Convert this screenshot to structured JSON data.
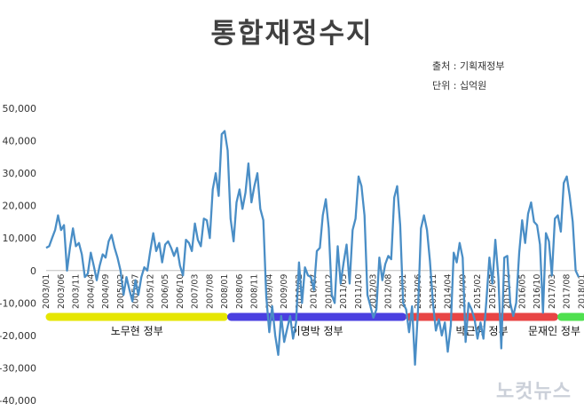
{
  "chart_data": {
    "type": "line",
    "title": "통합재정수지",
    "source_note": "출처 : 기획재정부",
    "unit_note": "단위 : 십억원",
    "ylim": [
      -40000,
      50000
    ],
    "y_ticks": [
      50000,
      40000,
      30000,
      20000,
      10000,
      0,
      -10000,
      -20000,
      -30000,
      -40000
    ],
    "y_tick_labels": [
      "50,000",
      "40,000",
      "30,000",
      "20,000",
      "10,000",
      "0",
      "-10,000",
      "-20,000",
      "-30,000",
      "-40,000"
    ],
    "x_tick_labels": [
      "2003/01",
      "2003/06",
      "2003/11",
      "2004/04",
      "2004/09",
      "2005/02",
      "2005/07",
      "2005/12",
      "2006/05",
      "2006/10",
      "2007/03",
      "2007/08",
      "2008/01",
      "2008/06",
      "2008/11",
      "2009/04",
      "2009/09",
      "2010/02",
      "2010/07",
      "2010/12",
      "2011/05",
      "2011/10",
      "2012/03",
      "2012/08",
      "2013/01",
      "2013/06",
      "2013/11",
      "2014/04",
      "2014/09",
      "2015/02",
      "2015/07",
      "2015/12",
      "2016/05",
      "2016/10",
      "2017/03",
      "2017/08",
      "2018/01"
    ],
    "series": [
      {
        "name": "통합재정수지",
        "color": "#4a8ec6",
        "values": [
          7000,
          7500,
          10000,
          12500,
          17000,
          12500,
          14000,
          0,
          7000,
          13000,
          7500,
          8500,
          5000,
          -2000,
          -1000,
          5500,
          1500,
          -3000,
          1500,
          5000,
          4000,
          9000,
          11000,
          7000,
          4000,
          0,
          -7500,
          -2000,
          -6000,
          -9500,
          -3000,
          -7500,
          -2000,
          1000,
          0,
          6000,
          11500,
          6000,
          8500,
          2500,
          8000,
          9000,
          7000,
          4500,
          7000,
          1500,
          -1500,
          9500,
          8500,
          6000,
          14500,
          9500,
          7500,
          16000,
          15500,
          10000,
          25000,
          30000,
          23000,
          42000,
          43000,
          37000,
          16000,
          9000,
          21000,
          25000,
          19000,
          24000,
          33000,
          21000,
          26000,
          30000,
          19000,
          15500,
          -8000,
          -19000,
          -11000,
          -20000,
          -26000,
          -14000,
          -22000,
          -18000,
          -14000,
          -21000,
          -16000,
          2500,
          -10000,
          1000,
          -1500,
          -2000,
          -6000,
          6000,
          7000,
          17000,
          22000,
          13000,
          -7500,
          -10000,
          7500,
          -4000,
          2500,
          8000,
          -4000,
          12500,
          16000,
          29000,
          26000,
          17000,
          -7500,
          -11000,
          -14500,
          -12000,
          4000,
          -3000,
          2000,
          4500,
          3500,
          22500,
          26000,
          14000,
          -10000,
          -12000,
          -19000,
          -11000,
          -29000,
          -12000,
          13000,
          17000,
          12500,
          3000,
          -10000,
          -18500,
          -15000,
          -20000,
          -16000,
          -25000,
          -17000,
          5500,
          2500,
          8500,
          4000,
          -22000,
          -10000,
          -12000,
          -15000,
          -21000,
          -16000,
          -21000,
          -9000,
          4000,
          -4000,
          9500,
          -2000,
          -24000,
          4000,
          4500,
          -10000,
          -14000,
          -10000,
          5500,
          15500,
          8500,
          17500,
          21000,
          15000,
          14000,
          8000,
          -13000,
          11500,
          9000,
          -1500,
          16000,
          17000,
          12000,
          27000,
          29000,
          23000,
          15000,
          0,
          -2000
        ]
      }
    ],
    "eras": [
      {
        "label": "노무현 정부",
        "color": "#e6e600",
        "start": "2003/01",
        "end": "2008/02"
      },
      {
        "label": "이명박 정부",
        "color": "#4a3fe0",
        "start": "2008/02",
        "end": "2013/02"
      },
      {
        "label": "박근혜 정부",
        "color": "#e84545",
        "start": "2013/02",
        "end": "2017/05"
      },
      {
        "label": "문재인 정부",
        "color": "#4fe04f",
        "start": "2017/05",
        "end": "2018/04"
      }
    ]
  },
  "watermark": "노컷뉴스"
}
